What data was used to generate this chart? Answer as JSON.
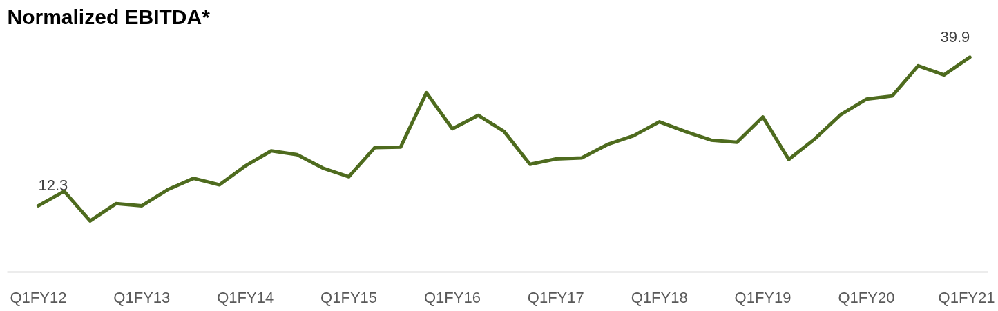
{
  "chart_data": {
    "type": "line",
    "title": "Normalized EBITDA*",
    "categories": [
      "Q1FY12",
      null,
      null,
      null,
      "Q1FY13",
      null,
      null,
      null,
      "Q1FY14",
      null,
      null,
      null,
      "Q1FY15",
      null,
      null,
      null,
      "Q1FY16",
      null,
      null,
      null,
      "Q1FY17",
      null,
      null,
      null,
      "Q1FY18",
      null,
      null,
      null,
      "Q1FY19",
      null,
      null,
      null,
      "Q1FY20",
      null,
      null,
      null,
      "Q1FY21"
    ],
    "series": [
      {
        "color": "#4e6b1e",
        "values": [
          12.3,
          15.0,
          9.5,
          12.7,
          12.3,
          15.3,
          17.4,
          16.2,
          19.7,
          22.5,
          21.8,
          19.3,
          17.7,
          23.1,
          23.2,
          33.3,
          26.6,
          29.1,
          26.1,
          20.0,
          21.0,
          21.2,
          23.7,
          25.3,
          27.9,
          26.1,
          24.5,
          24.1,
          28.8,
          20.9,
          24.7,
          29.2,
          32.1,
          32.7,
          38.3,
          36.6,
          39.9
        ],
        "value_labels": [
          "12.3",
          null,
          null,
          null,
          null,
          null,
          null,
          null,
          null,
          null,
          null,
          null,
          null,
          null,
          null,
          null,
          null,
          null,
          null,
          null,
          null,
          null,
          null,
          null,
          null,
          null,
          null,
          null,
          null,
          null,
          null,
          null,
          null,
          null,
          null,
          null,
          "39.9"
        ]
      }
    ],
    "grid": false,
    "legend": false,
    "marker": "none",
    "line_style": "solid"
  }
}
